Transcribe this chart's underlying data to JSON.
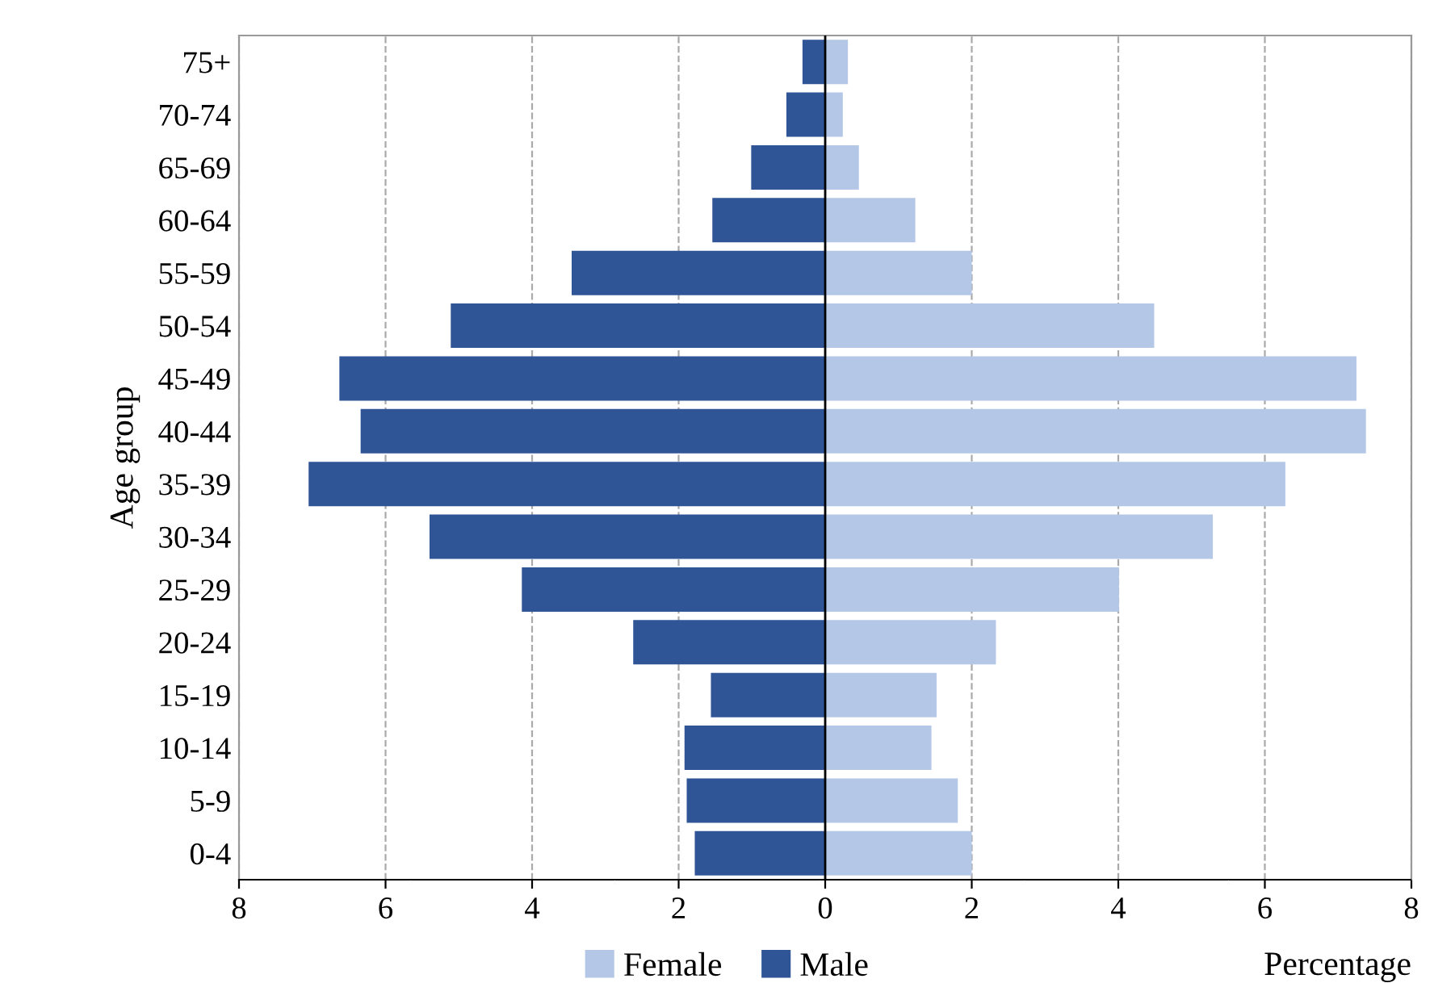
{
  "chart_data": {
    "type": "bar",
    "orientation": "horizontal",
    "ylabel": "Age group",
    "xlabel": "Percentage",
    "categories": [
      "75+",
      "70-74",
      "65-69",
      "60-64",
      "55-59",
      "50-54",
      "45-49",
      "40-44",
      "35-39",
      "30-34",
      "25-29",
      "20-24",
      "15-19",
      "10-14",
      "5-9",
      "0-4"
    ],
    "series": [
      {
        "name": "Female",
        "color": "#b4c7e7",
        "values": [
          0.31,
          0.24,
          0.46,
          1.23,
          2.0,
          4.49,
          7.25,
          7.38,
          6.28,
          5.29,
          4.01,
          2.33,
          1.52,
          1.45,
          1.81,
          2.0
        ]
      },
      {
        "name": "Male",
        "color": "#2f5597",
        "values": [
          -0.31,
          -0.53,
          -1.01,
          -1.54,
          -3.46,
          -5.11,
          -6.63,
          -6.34,
          -7.05,
          -5.4,
          -4.14,
          -2.62,
          -1.56,
          -1.92,
          -1.89,
          -1.78
        ]
      }
    ],
    "xlim": [
      -8,
      8
    ],
    "xticks": [
      {
        "value": -8,
        "label": "8"
      },
      {
        "value": -6,
        "label": "6"
      },
      {
        "value": -4,
        "label": "4"
      },
      {
        "value": -2,
        "label": "2"
      },
      0,
      2,
      4,
      6,
      8
    ],
    "grid": "x",
    "legend": "bottom",
    "stacked": true
  }
}
